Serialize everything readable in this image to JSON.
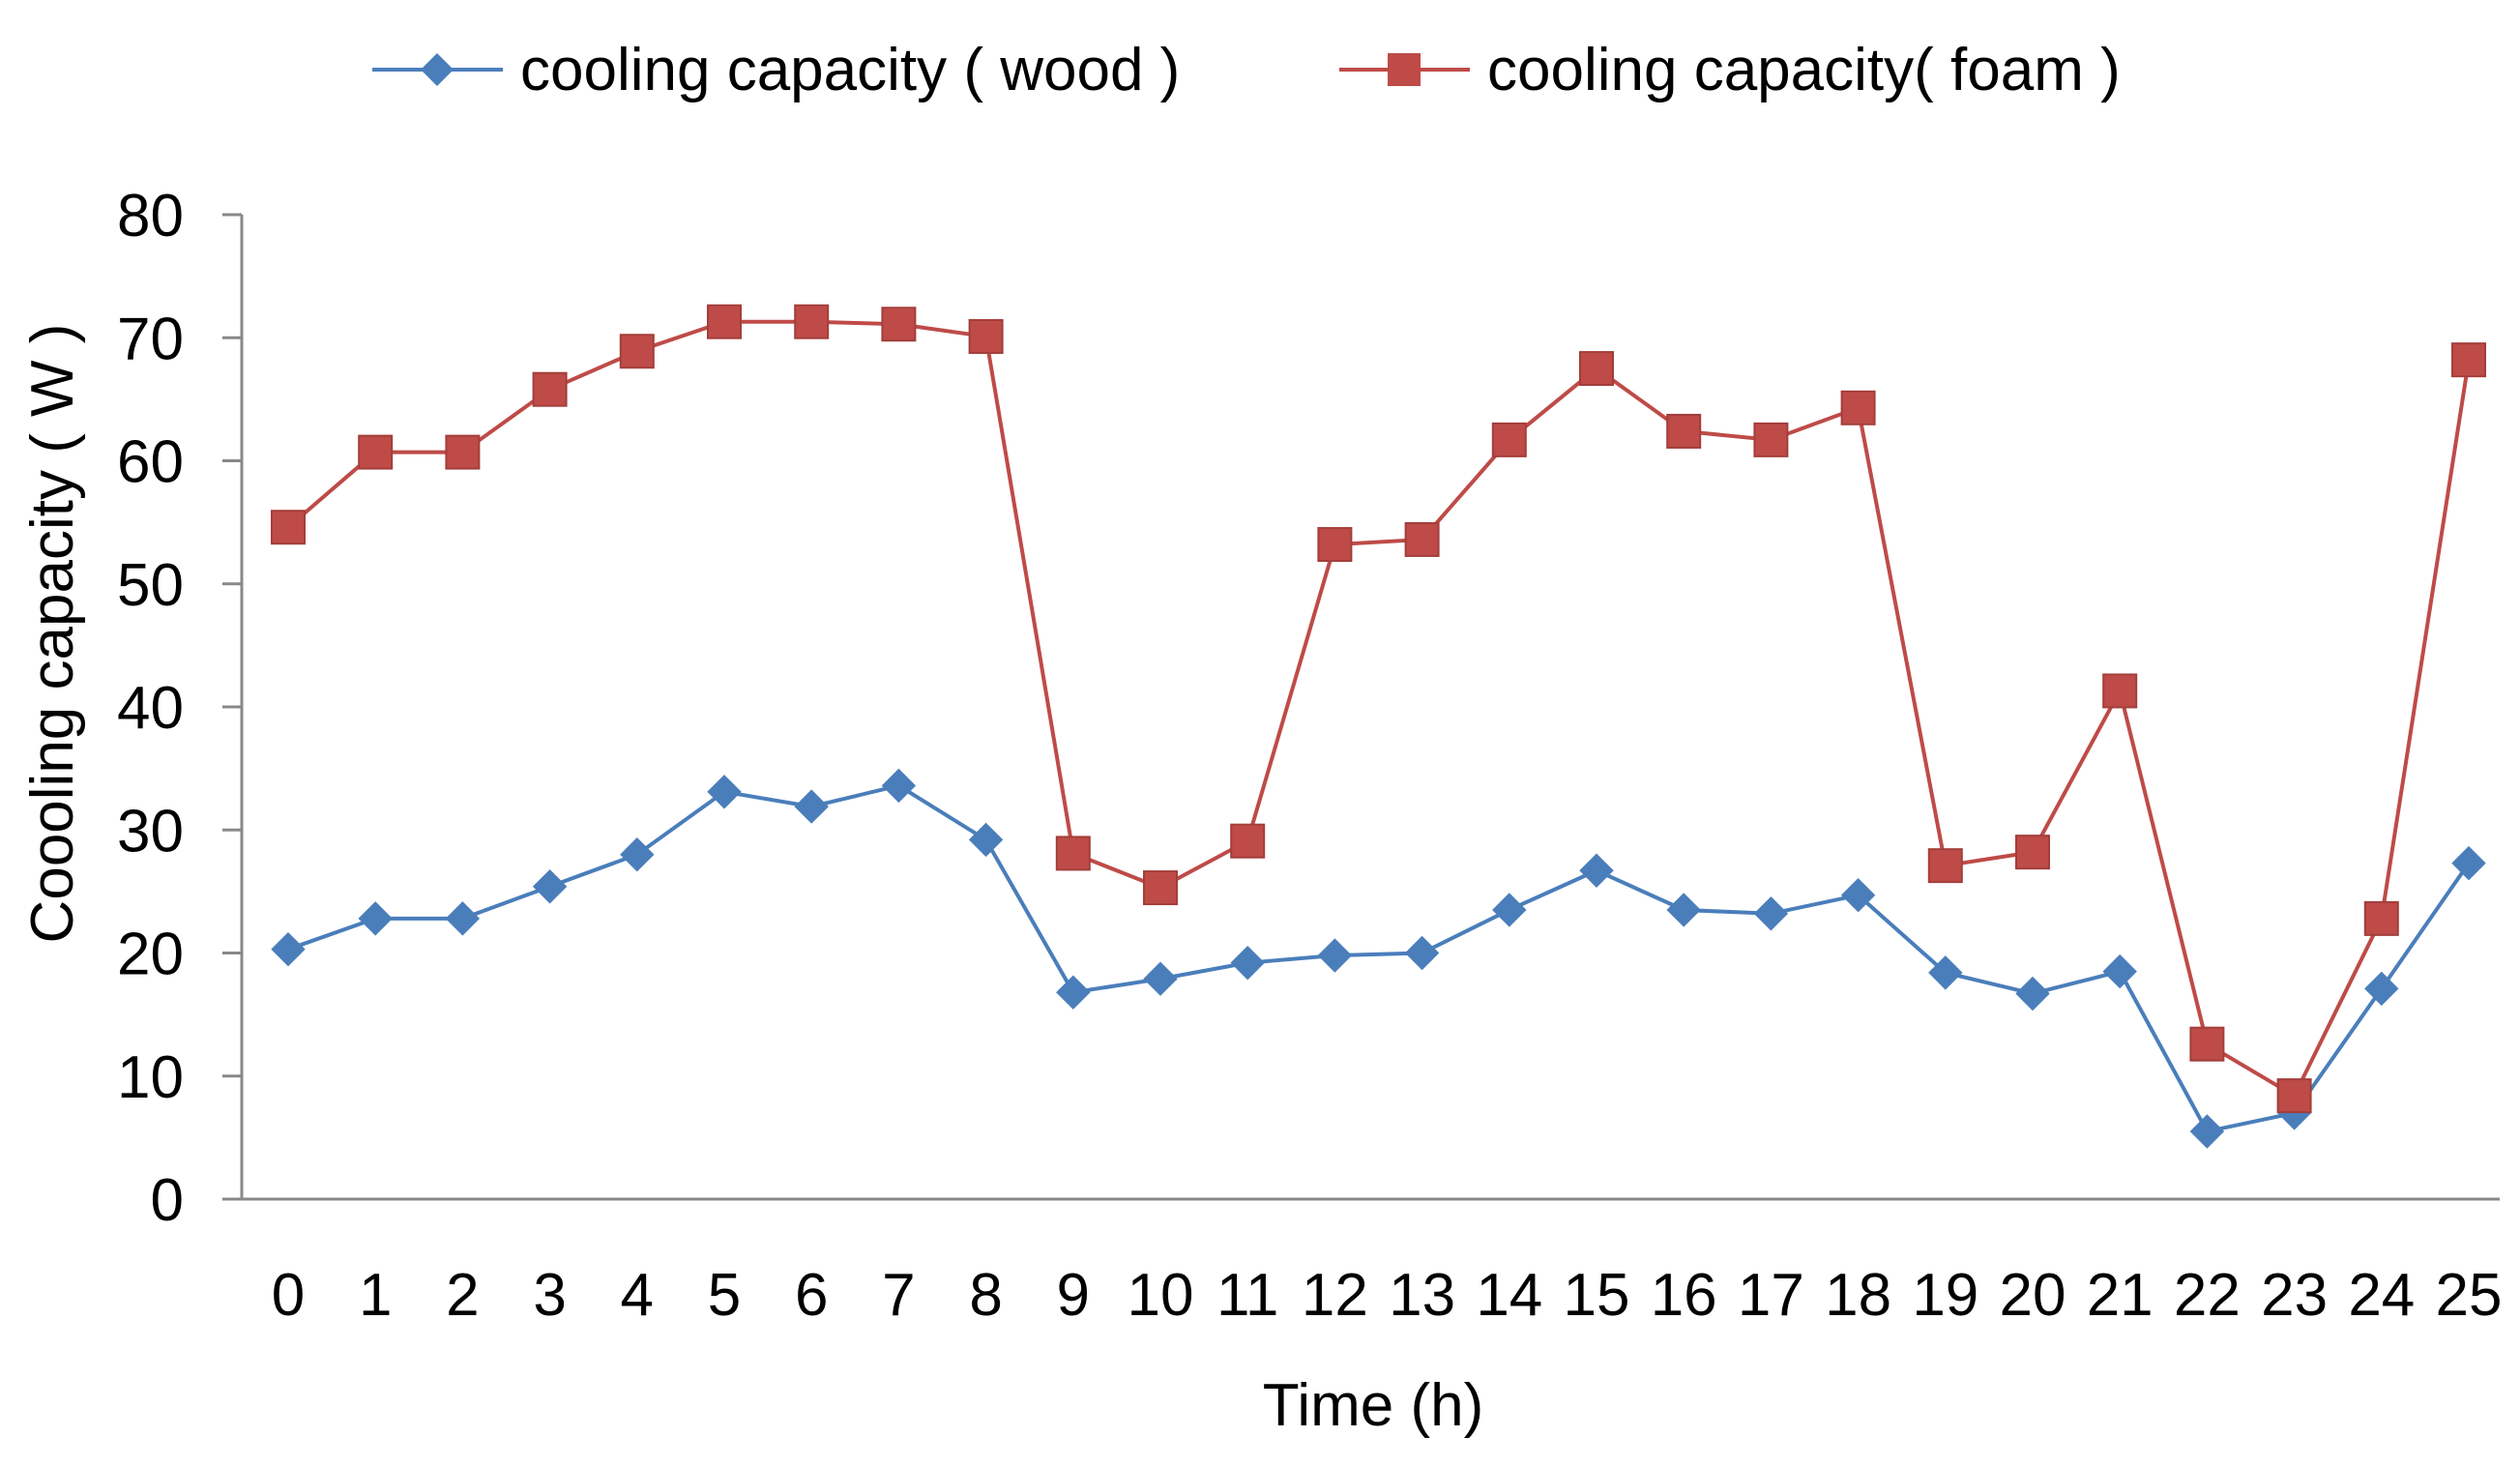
{
  "chart_data": {
    "type": "line",
    "title": "",
    "xlabel": "Time (h)",
    "ylabel": "Coooling capacity ( W )",
    "ylim": [
      0,
      80
    ],
    "yticks": [
      0,
      10,
      20,
      30,
      40,
      50,
      60,
      70,
      80
    ],
    "grid": false,
    "legend_position": "top-center",
    "categories": [
      "0",
      "1",
      "2",
      "3",
      "4",
      "5",
      "6",
      "7",
      "8",
      "9",
      "10",
      "11",
      "12",
      "13",
      "14",
      "15",
      "16",
      "17",
      "18",
      "19",
      "20",
      "21",
      "22",
      "23",
      "24",
      "25"
    ],
    "series": [
      {
        "name": "cooling capacity ( wood )",
        "color": "#4A7EBB",
        "marker": "diamond",
        "values": [
          20.3,
          22.8,
          22.8,
          25.4,
          28.0,
          33.1,
          31.9,
          33.6,
          29.2,
          16.8,
          17.9,
          19.2,
          19.8,
          20.0,
          23.5,
          26.7,
          23.5,
          23.2,
          24.7,
          18.4,
          16.7,
          18.5,
          5.5,
          7.0,
          17.1,
          27.3
        ]
      },
      {
        "name": "cooling capacity( foam )",
        "color": "#BE4B48",
        "marker": "square",
        "values": [
          54.6,
          60.7,
          60.7,
          65.8,
          68.9,
          71.3,
          71.3,
          71.1,
          70.1,
          28.1,
          25.3,
          29.1,
          53.2,
          53.6,
          61.7,
          67.5,
          62.4,
          61.7,
          64.3,
          27.1,
          28.2,
          41.3,
          12.6,
          8.4,
          22.8,
          68.2
        ]
      }
    ]
  }
}
